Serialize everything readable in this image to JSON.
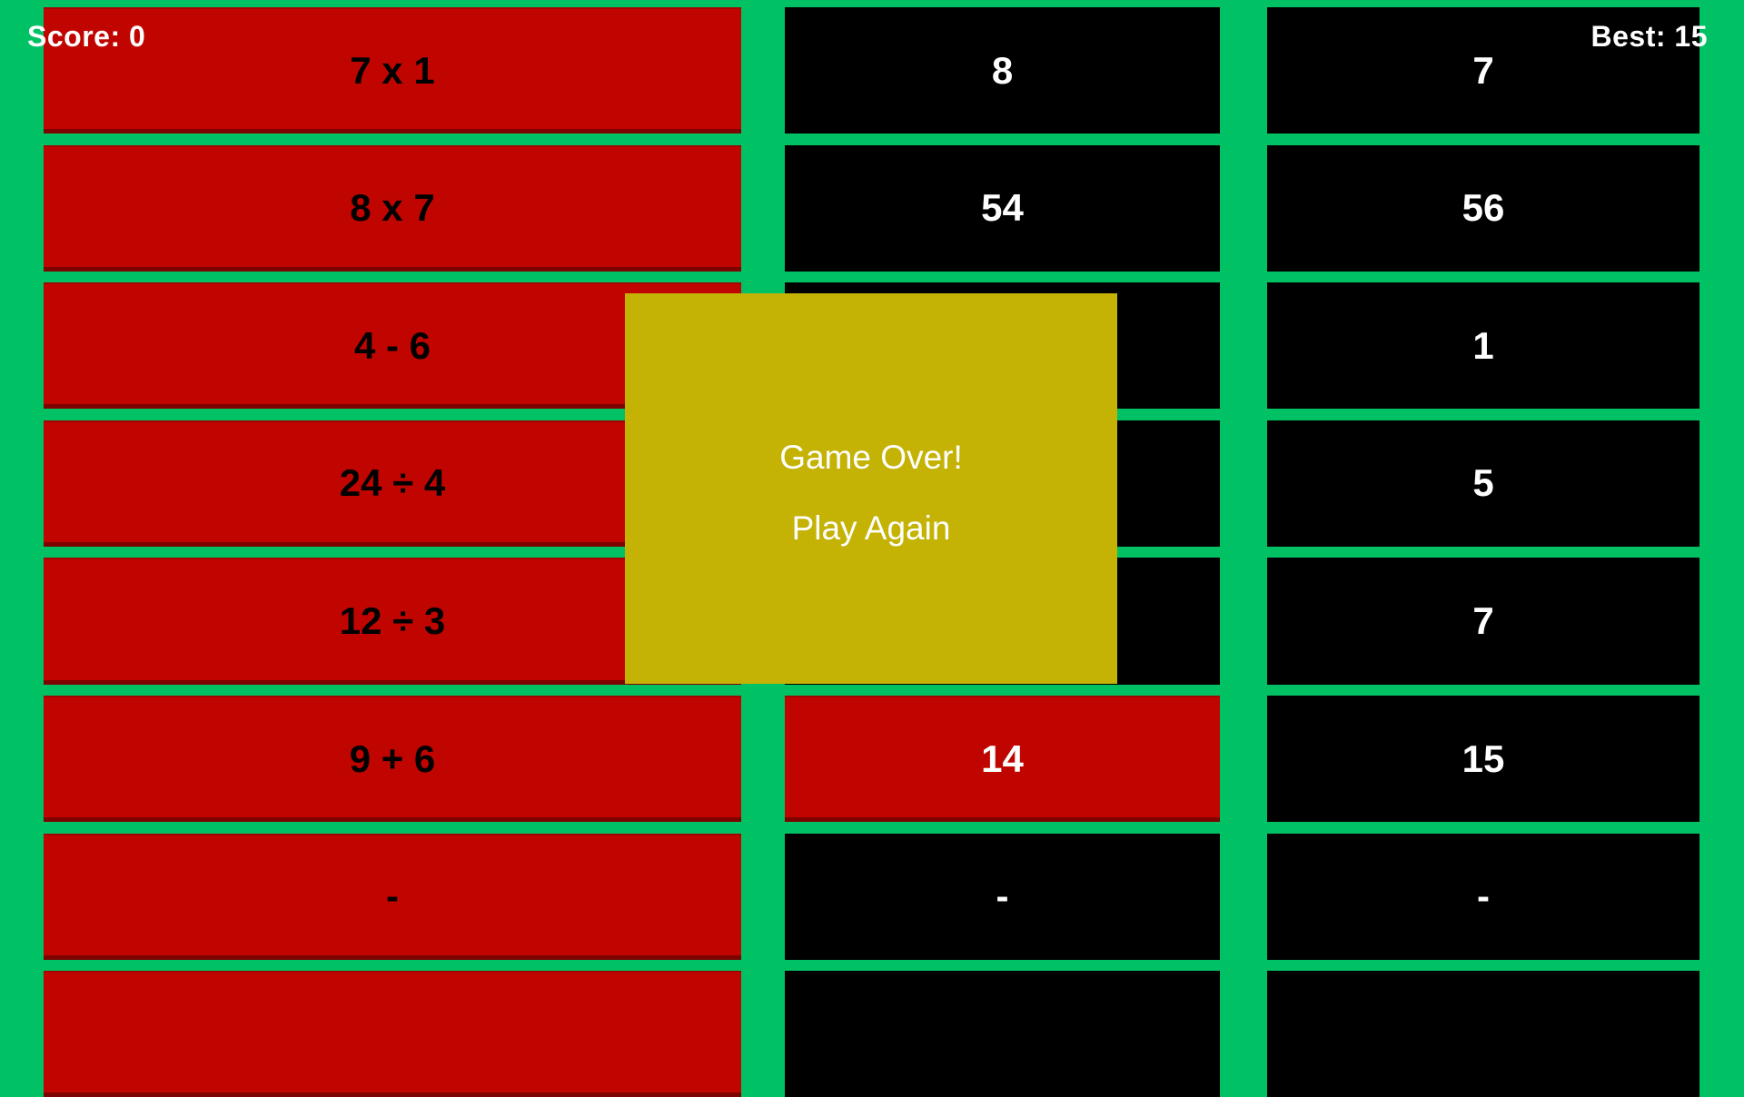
{
  "hud": {
    "score": "Score: 0",
    "best": "Best: 15"
  },
  "grid": {
    "problems": [
      {
        "text": "7 x 1",
        "state": "red"
      },
      {
        "text": "8 x 7",
        "state": "red"
      },
      {
        "text": "4 - 6",
        "state": "red"
      },
      {
        "text": "24 ÷ 4",
        "state": "red"
      },
      {
        "text": "12 ÷ 3",
        "state": "red"
      },
      {
        "text": "9 + 6",
        "state": "red"
      },
      {
        "text": "-",
        "state": "red"
      },
      {
        "text": "",
        "state": "red"
      }
    ],
    "answers_middle": [
      {
        "text": "8",
        "state": "black"
      },
      {
        "text": "54",
        "state": "black"
      },
      {
        "text": "",
        "state": "black"
      },
      {
        "text": "",
        "state": "black"
      },
      {
        "text": "",
        "state": "black"
      },
      {
        "text": "14",
        "state": "red"
      },
      {
        "text": "-",
        "state": "black"
      },
      {
        "text": "",
        "state": "black"
      }
    ],
    "answers_right": [
      {
        "text": "7",
        "state": "black"
      },
      {
        "text": "56",
        "state": "black"
      },
      {
        "text": "1",
        "state": "black"
      },
      {
        "text": "5",
        "state": "black"
      },
      {
        "text": "7",
        "state": "black"
      },
      {
        "text": "15",
        "state": "black"
      },
      {
        "text": "-",
        "state": "black"
      },
      {
        "text": "",
        "state": "black"
      }
    ]
  },
  "overlay": {
    "title": "Game Over!",
    "button": "Play Again"
  },
  "colors": {
    "background_green": "#00c164",
    "cell_red": "#c00500",
    "cell_black": "#000000",
    "overlay_yellow": "#c4b204",
    "text_white": "#ffffff",
    "text_black": "#000000"
  }
}
